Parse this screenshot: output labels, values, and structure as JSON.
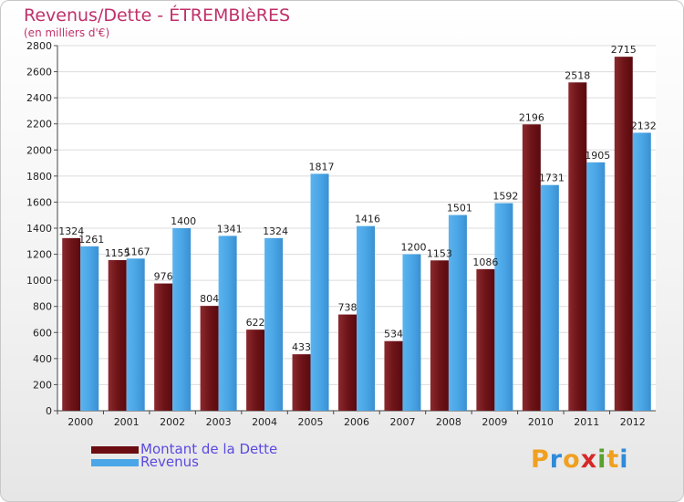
{
  "page": {
    "title": "Revenus/Dette - ÉTREMBIèRES",
    "subtitle": "(en milliers d'€)"
  },
  "chart_data": {
    "type": "bar",
    "categories": [
      "2000",
      "2001",
      "2002",
      "2003",
      "2004",
      "2005",
      "2006",
      "2007",
      "2008",
      "2009",
      "2010",
      "2011",
      "2012"
    ],
    "series": [
      {
        "name": "Montant de la Dette",
        "values": [
          1324,
          1155,
          976,
          804,
          622,
          433,
          738,
          534,
          1153,
          1086,
          2196,
          2518,
          2715
        ],
        "color": "#7a1a1e"
      },
      {
        "name": "Revenus",
        "values": [
          1261,
          1167,
          1400,
          1341,
          1324,
          1817,
          1416,
          1200,
          1501,
          1592,
          1731,
          1905,
          2132
        ],
        "color": "#4aa6e6"
      }
    ],
    "yticks": [
      0,
      200,
      400,
      600,
      800,
      1000,
      1200,
      1400,
      1600,
      1800,
      2000,
      2200,
      2400,
      2600,
      2800
    ],
    "ylim": [
      0,
      2800
    ],
    "grid": true,
    "legend_position": "bottom-left"
  },
  "legend": {
    "debt_label": "Montant de la Dette",
    "revenue_label": "Revenus"
  },
  "brand": {
    "letters": [
      "P",
      "r",
      "o",
      "x",
      "i",
      "t",
      "i"
    ],
    "colors": [
      "#f0a020",
      "#2f8ad8",
      "#f0a020",
      "#d62828",
      "#5aa02c",
      "#f0a020",
      "#2f8ad8"
    ]
  }
}
